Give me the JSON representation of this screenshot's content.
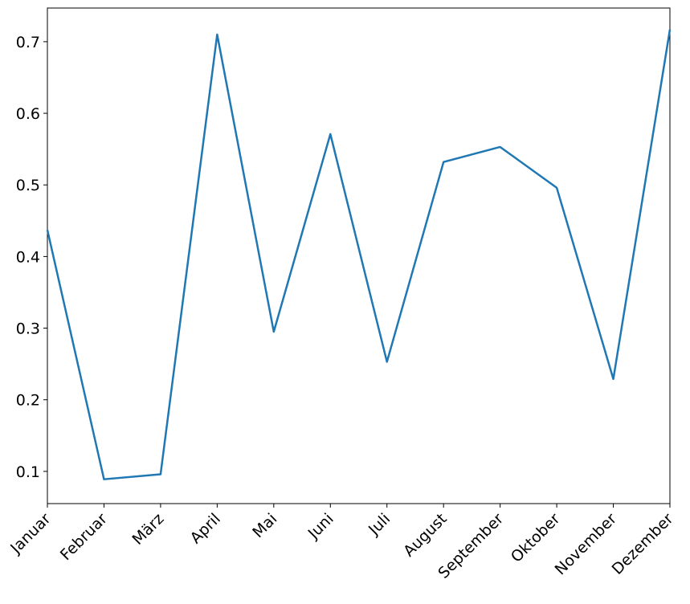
{
  "chart_data": {
    "type": "line",
    "categories": [
      "Januar",
      "Februar",
      "März",
      "April",
      "Mai",
      "Juni",
      "Juli",
      "August",
      "September",
      "Oktober",
      "November",
      "Dezember"
    ],
    "series": [
      {
        "color": "#1f77b4",
        "values": [
          0.437,
          0.089,
          0.096,
          0.71,
          0.295,
          0.571,
          0.253,
          0.532,
          0.553,
          0.496,
          0.229,
          0.717
        ]
      }
    ],
    "ylim": [
      0.055,
      0.747
    ],
    "yticks": [
      0.1,
      0.2,
      0.3,
      0.4,
      0.5,
      0.6,
      0.7
    ],
    "grid": false
  }
}
